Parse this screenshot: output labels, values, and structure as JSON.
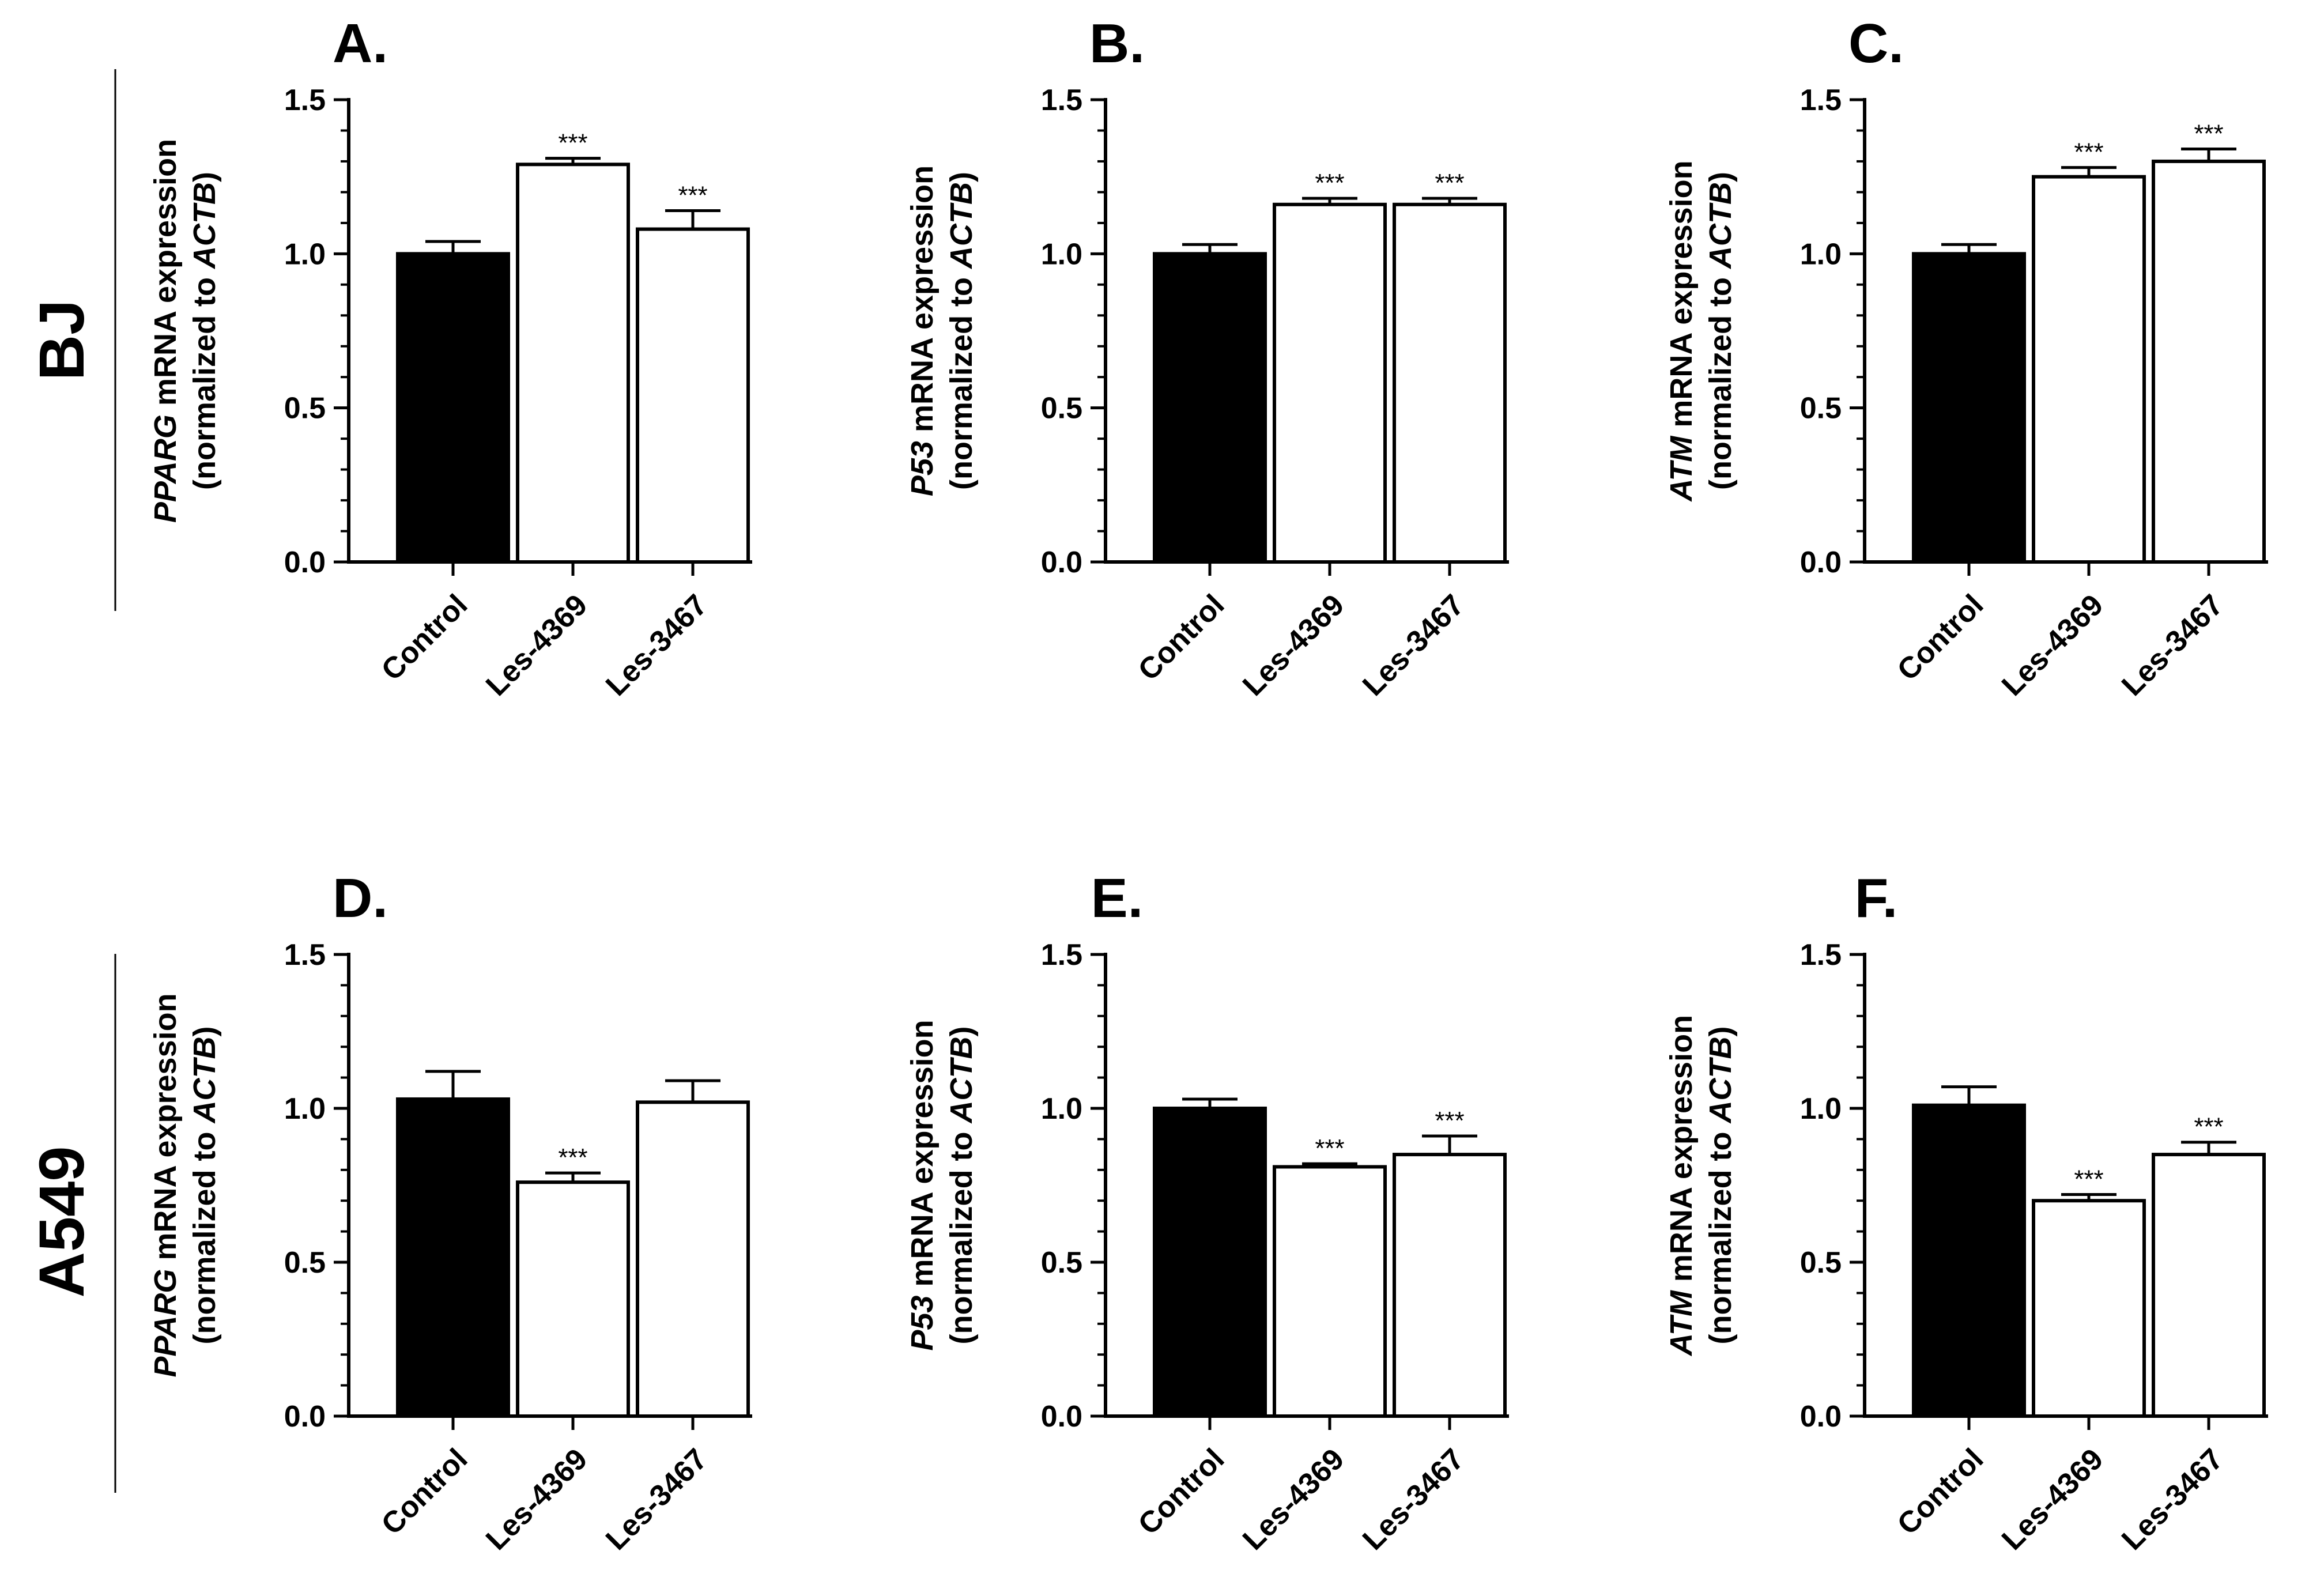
{
  "figure": {
    "rows": [
      {
        "label": "BJ"
      },
      {
        "label": "A549"
      }
    ]
  },
  "colors": {
    "control_fill": "#000000",
    "treatment_fill": "#ffffff",
    "stroke": "#000000"
  },
  "chart_data": [
    {
      "type": "bar",
      "panel": "A.",
      "gene": "PPARG",
      "ylabel_suffix": " mRNA expression",
      "ylabel_line2_prefix": "(normalized to ",
      "ylabel_ref_gene": "ACTB",
      "ylabel_line2_suffix": ")",
      "categories": [
        "Control",
        "Les-4369",
        "Les-3467"
      ],
      "values": [
        1.0,
        1.29,
        1.08
      ],
      "errors": [
        0.04,
        0.02,
        0.06
      ],
      "significance": [
        "",
        "***",
        "***"
      ],
      "ylim": [
        0,
        1.5
      ],
      "yticks": [
        "0.0",
        "0.5",
        "1.0",
        "1.5"
      ]
    },
    {
      "type": "bar",
      "panel": "B.",
      "gene": "P53",
      "ylabel_suffix": " mRNA expression",
      "ylabel_line2_prefix": "(normalized to ",
      "ylabel_ref_gene": "ACTB",
      "ylabel_line2_suffix": ")",
      "categories": [
        "Control",
        "Les-4369",
        "Les-3467"
      ],
      "values": [
        1.0,
        1.16,
        1.16
      ],
      "errors": [
        0.03,
        0.02,
        0.02
      ],
      "significance": [
        "",
        "***",
        "***"
      ],
      "ylim": [
        0,
        1.5
      ],
      "yticks": [
        "0.0",
        "0.5",
        "1.0",
        "1.5"
      ]
    },
    {
      "type": "bar",
      "panel": "C.",
      "gene": "ATM",
      "ylabel_suffix": " mRNA expression",
      "ylabel_line2_prefix": "(normalized to ",
      "ylabel_ref_gene": "ACTB",
      "ylabel_line2_suffix": ")",
      "categories": [
        "Control",
        "Les-4369",
        "Les-3467"
      ],
      "values": [
        1.0,
        1.25,
        1.3
      ],
      "errors": [
        0.03,
        0.03,
        0.04
      ],
      "significance": [
        "",
        "***",
        "***"
      ],
      "ylim": [
        0,
        1.5
      ],
      "yticks": [
        "0.0",
        "0.5",
        "1.0",
        "1.5"
      ]
    },
    {
      "type": "bar",
      "panel": "D.",
      "gene": "PPARG",
      "ylabel_suffix": " mRNA expression",
      "ylabel_line2_prefix": "(normalized to ",
      "ylabel_ref_gene": "ACTB",
      "ylabel_line2_suffix": ")",
      "categories": [
        "Control",
        "Les-4369",
        "Les-3467"
      ],
      "values": [
        1.03,
        0.76,
        1.02
      ],
      "errors": [
        0.09,
        0.03,
        0.07
      ],
      "significance": [
        "",
        "***",
        ""
      ],
      "ylim": [
        0,
        1.5
      ],
      "yticks": [
        "0.0",
        "0.5",
        "1.0",
        "1.5"
      ]
    },
    {
      "type": "bar",
      "panel": "E.",
      "gene": "P53",
      "ylabel_suffix": " mRNA expression",
      "ylabel_line2_prefix": "(normalized to ",
      "ylabel_ref_gene": "ACTB",
      "ylabel_line2_suffix": ")",
      "categories": [
        "Control",
        "Les-4369",
        "Les-3467"
      ],
      "values": [
        1.0,
        0.81,
        0.85
      ],
      "errors": [
        0.03,
        0.01,
        0.06
      ],
      "significance": [
        "",
        "***",
        "***"
      ],
      "ylim": [
        0,
        1.5
      ],
      "yticks": [
        "0.0",
        "0.5",
        "1.0",
        "1.5"
      ]
    },
    {
      "type": "bar",
      "panel": "F.",
      "gene": "ATM",
      "ylabel_suffix": " mRNA expression",
      "ylabel_line2_prefix": "(normalized to ",
      "ylabel_ref_gene": "ACTB",
      "ylabel_line2_suffix": ")",
      "categories": [
        "Control",
        "Les-4369",
        "Les-3467"
      ],
      "values": [
        1.01,
        0.7,
        0.85
      ],
      "errors": [
        0.06,
        0.02,
        0.04
      ],
      "significance": [
        "",
        "***",
        "***"
      ],
      "ylim": [
        0,
        1.5
      ],
      "yticks": [
        "0.0",
        "0.5",
        "1.0",
        "1.5"
      ]
    }
  ]
}
